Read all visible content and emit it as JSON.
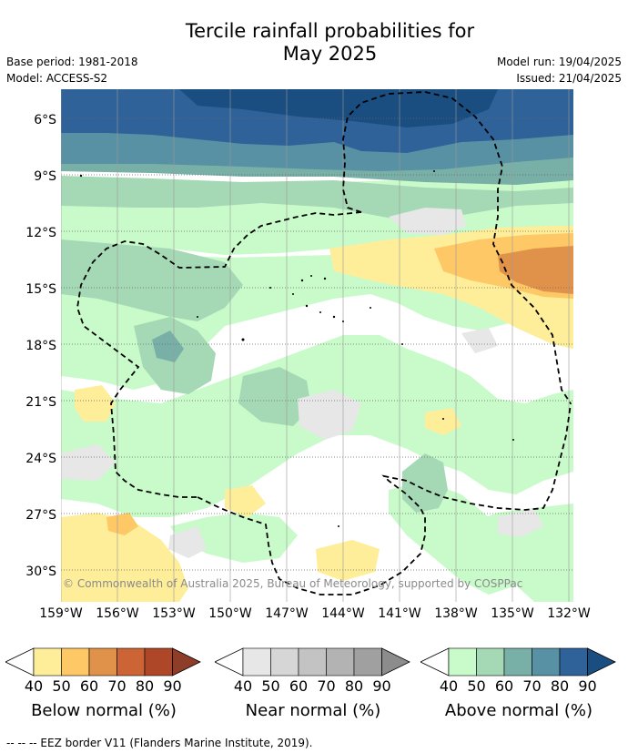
{
  "header": {
    "title_line1": "Tercile rainfall probabilities for",
    "title_line2": "May 2025",
    "base_period": "Base period: 1981-2018",
    "model": "Model: ACCESS-S2",
    "model_run": "Model run: 19/04/2025",
    "issued": "Issued: 21/04/2025"
  },
  "map": {
    "lat_labels": [
      "6°S",
      "9°S",
      "12°S",
      "15°S",
      "18°S",
      "21°S",
      "24°S",
      "27°S",
      "30°S"
    ],
    "lon_labels": [
      "159°W",
      "156°W",
      "153°W",
      "150°W",
      "147°W",
      "144°W",
      "141°W",
      "138°W",
      "135°W",
      "132°W"
    ],
    "copyright": "© Commonwealth of Australia 2025, Bureau of Meteorology, supported by COSPPac",
    "gridlines": "dotted",
    "eez_border_style": "dashed"
  },
  "legends": [
    {
      "title": "Below normal (%)",
      "ticks": [
        "40",
        "50",
        "60",
        "70",
        "80",
        "90"
      ],
      "colors": [
        "#ffee99",
        "#fdc865",
        "#e0924a",
        "#cc6436",
        "#ad4728",
        "#8e3e28"
      ]
    },
    {
      "title": "Near normal (%)",
      "ticks": [
        "40",
        "50",
        "60",
        "70",
        "80",
        "90"
      ],
      "colors": [
        "#e7e7e7",
        "#d6d6d6",
        "#c3c3c3",
        "#b3b3b3",
        "#a0a0a0",
        "#8c8c8c"
      ]
    },
    {
      "title": "Above normal (%)",
      "ticks": [
        "40",
        "50",
        "60",
        "70",
        "80",
        "90"
      ],
      "colors": [
        "#c8fbc9",
        "#a5d8b4",
        "#78b0a8",
        "#5891a4",
        "#2e6298",
        "#1a4e80"
      ]
    }
  ],
  "footnote": "--  --  -- EEZ border V11 (Flanders Marine Institute, 2019)."
}
